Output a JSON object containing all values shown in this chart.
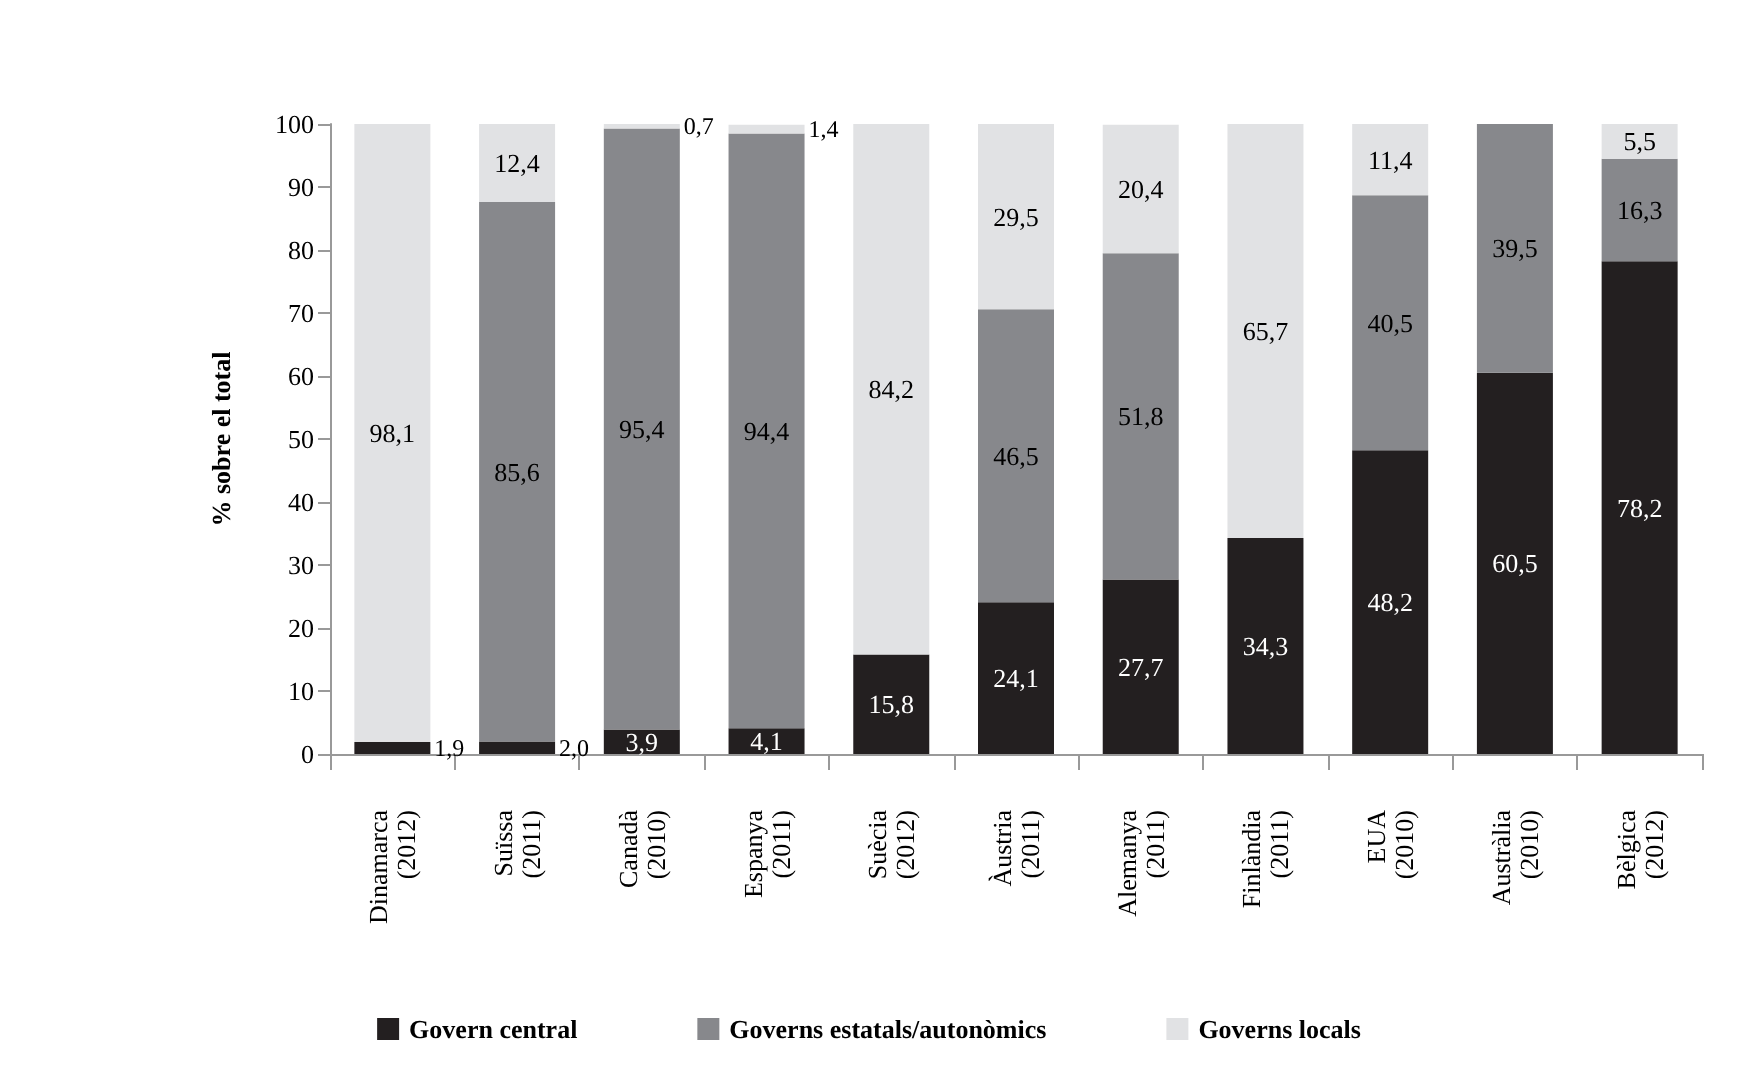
{
  "chart_data": {
    "type": "bar",
    "stacked": true,
    "ylabel": "% sobre el total",
    "categories": [
      "Dinamarca\n(2012)",
      "Suïssa\n(2011)",
      "Canadà\n(2010)",
      "Espanya\n(2011)",
      "Suècia\n(2012)",
      "Àustria\n(2011)",
      "Alemanya\n(2011)",
      "Finlàndia\n(2011)",
      "EUA\n(2010)",
      "Austràlia\n(2010)",
      "Bèlgica\n(2012)"
    ],
    "series": [
      {
        "name": "Govern central",
        "color": "#231f20",
        "values": [
          1.9,
          2.0,
          3.9,
          4.1,
          15.8,
          24.1,
          27.7,
          34.3,
          48.2,
          60.5,
          78.2
        ],
        "value_labels": [
          "1,9",
          "2,0",
          "3,9",
          "4,1",
          "15,8",
          "24,1",
          "27,7",
          "34,3",
          "48,2",
          "60,5",
          "78,2"
        ]
      },
      {
        "name": "Governs estatals/autonòmics",
        "color": "#87888c",
        "values": [
          null,
          85.6,
          95.4,
          94.4,
          null,
          46.5,
          51.8,
          null,
          40.5,
          39.5,
          16.3
        ],
        "value_labels": [
          null,
          "85,6",
          "95,4",
          "94,4",
          null,
          "46,5",
          "51,8",
          null,
          "40,5",
          "39,5",
          "16,3"
        ]
      },
      {
        "name": "Governs locals",
        "color": "#e1e2e4",
        "values": [
          98.1,
          12.4,
          0.7,
          1.4,
          84.2,
          29.5,
          20.4,
          65.7,
          11.4,
          null,
          5.5
        ],
        "value_labels": [
          "98,1",
          "12,4",
          "0,7",
          "1,4",
          "84,2",
          "29,5",
          "20,4",
          "65,7",
          "11,4",
          null,
          "5,5"
        ]
      }
    ],
    "ylim": [
      0,
      100
    ],
    "yticks": [
      0,
      10,
      20,
      30,
      40,
      50,
      60,
      70,
      80,
      90,
      100
    ],
    "grid": false,
    "legend": "bottom"
  }
}
